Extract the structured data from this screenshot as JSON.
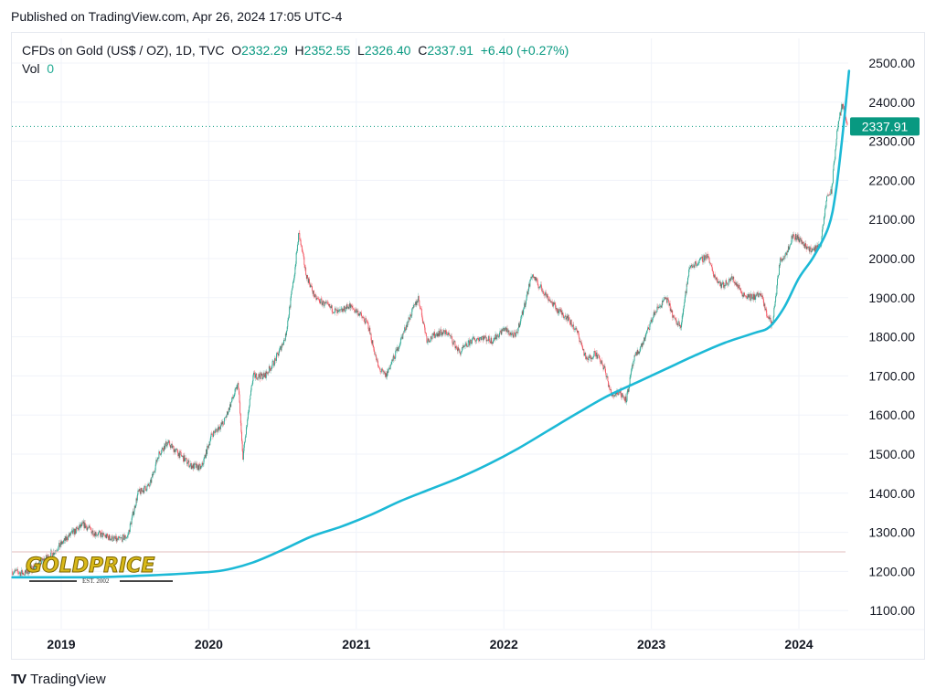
{
  "header": {
    "published": "Published on TradingView.com, Apr 26, 2024 17:05 UTC-4"
  },
  "legend": {
    "symbol": "CFDs on Gold (US$ / OZ), 1D, TVC",
    "open_label": "O",
    "open": "2332.29",
    "high_label": "H",
    "high": "2352.55",
    "low_label": "L",
    "low": "2326.40",
    "close_label": "C",
    "close": "2337.91",
    "change": "+6.40 (+0.27%)",
    "vol_label": "Vol",
    "vol": "0"
  },
  "watermark": {
    "brand": "GOLDPRICE",
    "est": "EST. 2002"
  },
  "footer": {
    "logo_text": "TradingView",
    "logo_mark": "TV"
  },
  "colors": {
    "up": "#089981",
    "down": "#f23645",
    "ma": "#1cb9d6",
    "price_label_bg": "#089981",
    "grid": "#f0f3fa",
    "ref_line": "#e8c9cb"
  },
  "chart_data": {
    "type": "candlestick",
    "title": "CFDs on Gold (US$ / OZ), 1D, TVC",
    "xlabel": "",
    "ylabel": "",
    "ylim": [
      1075,
      2515
    ],
    "xlim": [
      2018.66,
      2024.6
    ],
    "x_ticks": [
      2019,
      2020,
      2021,
      2022,
      2023,
      2024
    ],
    "x_tick_labels": [
      "2019",
      "2020",
      "2021",
      "2022",
      "2023",
      "2024"
    ],
    "y_ticks": [
      1100,
      1200,
      1300,
      1400,
      1500,
      1600,
      1700,
      1800,
      1900,
      2000,
      2100,
      2200,
      2300,
      2400,
      2500
    ],
    "y_tick_labels": [
      "1100.00",
      "1200.00",
      "1300.00",
      "1400.00",
      "1500.00",
      "1600.00",
      "1700.00",
      "1800.00",
      "1900.00",
      "2000.00",
      "2100.00",
      "2200.00",
      "2300.00",
      "2400.00",
      "2500.00"
    ],
    "last_price": 2337.91,
    "last_price_label": "2337.91",
    "horizontal_line": 1250,
    "grid": true,
    "series": [
      {
        "name": "Gold price (approx. close path)",
        "x": [
          2018.67,
          2018.75,
          2018.85,
          2018.95,
          2019.05,
          2019.15,
          2019.22,
          2019.3,
          2019.38,
          2019.45,
          2019.52,
          2019.6,
          2019.66,
          2019.72,
          2019.8,
          2019.88,
          2019.95,
          2020.02,
          2020.1,
          2020.16,
          2020.2,
          2020.23,
          2020.3,
          2020.38,
          2020.45,
          2020.52,
          2020.58,
          2020.61,
          2020.66,
          2020.72,
          2020.8,
          2020.88,
          2020.95,
          2021.02,
          2021.08,
          2021.15,
          2021.2,
          2021.27,
          2021.35,
          2021.42,
          2021.48,
          2021.55,
          2021.62,
          2021.7,
          2021.78,
          2021.85,
          2021.92,
          2022.0,
          2022.08,
          2022.14,
          2022.19,
          2022.24,
          2022.3,
          2022.36,
          2022.43,
          2022.5,
          2022.56,
          2022.62,
          2022.68,
          2022.73,
          2022.78,
          2022.83,
          2022.88,
          2022.95,
          2023.02,
          2023.1,
          2023.16,
          2023.2,
          2023.26,
          2023.32,
          2023.38,
          2023.42,
          2023.48,
          2023.55,
          2023.62,
          2023.68,
          2023.74,
          2023.78,
          2023.82,
          2023.87,
          2023.92,
          2023.96,
          2024.0,
          2024.05,
          2024.1,
          2024.15,
          2024.19,
          2024.22,
          2024.26,
          2024.29,
          2024.31,
          2024.33
        ],
        "values": [
          1200,
          1195,
          1220,
          1250,
          1290,
          1320,
          1300,
          1290,
          1280,
          1290,
          1400,
          1420,
          1500,
          1530,
          1500,
          1470,
          1465,
          1550,
          1580,
          1640,
          1680,
          1490,
          1700,
          1700,
          1740,
          1800,
          1960,
          2065,
          1960,
          1900,
          1880,
          1860,
          1880,
          1860,
          1830,
          1720,
          1700,
          1760,
          1840,
          1900,
          1790,
          1810,
          1810,
          1760,
          1790,
          1800,
          1790,
          1820,
          1800,
          1880,
          1960,
          1930,
          1900,
          1870,
          1850,
          1810,
          1740,
          1760,
          1720,
          1650,
          1660,
          1640,
          1740,
          1790,
          1860,
          1900,
          1840,
          1830,
          1980,
          1990,
          2010,
          1960,
          1930,
          1950,
          1910,
          1900,
          1910,
          1860,
          1830,
          1990,
          2020,
          2060,
          2050,
          2030,
          2020,
          2040,
          2160,
          2170,
          2330,
          2390,
          2380,
          2337.91
        ]
      },
      {
        "name": "Moving average",
        "x": [
          2018.67,
          2019.0,
          2019.3,
          2019.6,
          2019.9,
          2020.1,
          2020.3,
          2020.5,
          2020.7,
          2020.9,
          2021.1,
          2021.3,
          2021.5,
          2021.7,
          2021.9,
          2022.1,
          2022.3,
          2022.5,
          2022.7,
          2022.9,
          2023.1,
          2023.3,
          2023.5,
          2023.7,
          2023.8,
          2023.9,
          2024.0,
          2024.1,
          2024.2,
          2024.25,
          2024.3,
          2024.34
        ],
        "values": [
          1185,
          1185,
          1186,
          1190,
          1196,
          1203,
          1223,
          1255,
          1290,
          1315,
          1345,
          1380,
          1410,
          1440,
          1475,
          1515,
          1560,
          1605,
          1648,
          1683,
          1718,
          1753,
          1785,
          1810,
          1825,
          1875,
          1950,
          2005,
          2080,
          2170,
          2330,
          2480
        ]
      }
    ]
  }
}
